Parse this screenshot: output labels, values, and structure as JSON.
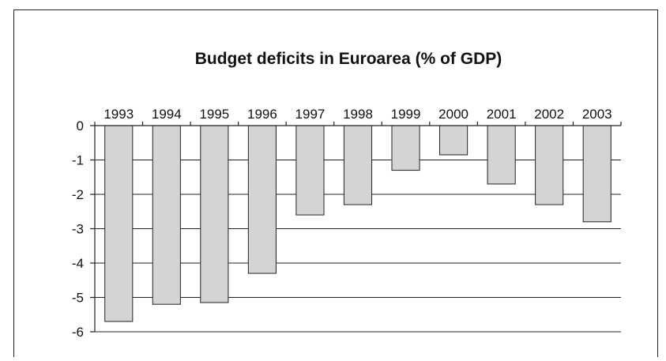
{
  "chart_data": {
    "type": "bar",
    "title": "Budget deficits in Euroarea (% of GDP)",
    "categories": [
      "1993",
      "1994",
      "1995",
      "1996",
      "1997",
      "1998",
      "1999",
      "2000",
      "2001",
      "2002",
      "2003"
    ],
    "values": [
      -5.7,
      -5.2,
      -5.15,
      -4.3,
      -2.6,
      -2.3,
      -1.3,
      -0.85,
      -1.7,
      -2.3,
      -2.8
    ],
    "ylim": [
      -6,
      0
    ],
    "yticks": [
      "0",
      "-1",
      "-2",
      "-3",
      "-4",
      "-5",
      "-6"
    ],
    "xlabel": "",
    "ylabel": "",
    "grid": true,
    "category_labels_position": "top",
    "bar_color": "#d4d4d4"
  }
}
